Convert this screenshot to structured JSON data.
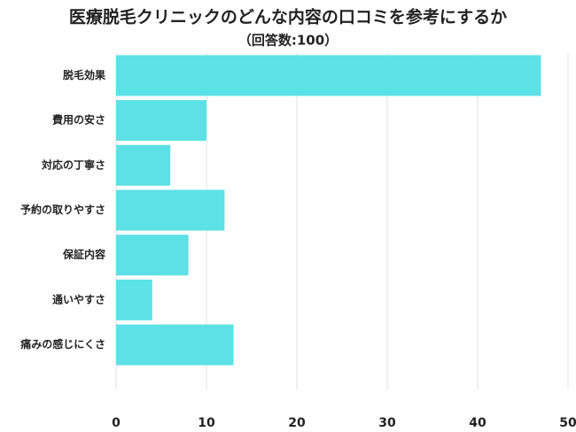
{
  "chart_data": {
    "type": "bar",
    "orientation": "horizontal",
    "title": "医療脱毛クリニックのどんな内容の口コミを参考にするか",
    "subtitle": "（回答数:100）",
    "categories": [
      "脱毛効果",
      "費用の安さ",
      "対応の丁寧さ",
      "予約の取りやすさ",
      "保証内容",
      "通いやすさ",
      "痛みの感じにくさ"
    ],
    "values": [
      47,
      10,
      6,
      12,
      8,
      4,
      13
    ],
    "color": "#5ce1e6",
    "xlim": [
      0,
      50
    ],
    "xticks": [
      0,
      10,
      20,
      30,
      40,
      50
    ],
    "grid": true
  }
}
